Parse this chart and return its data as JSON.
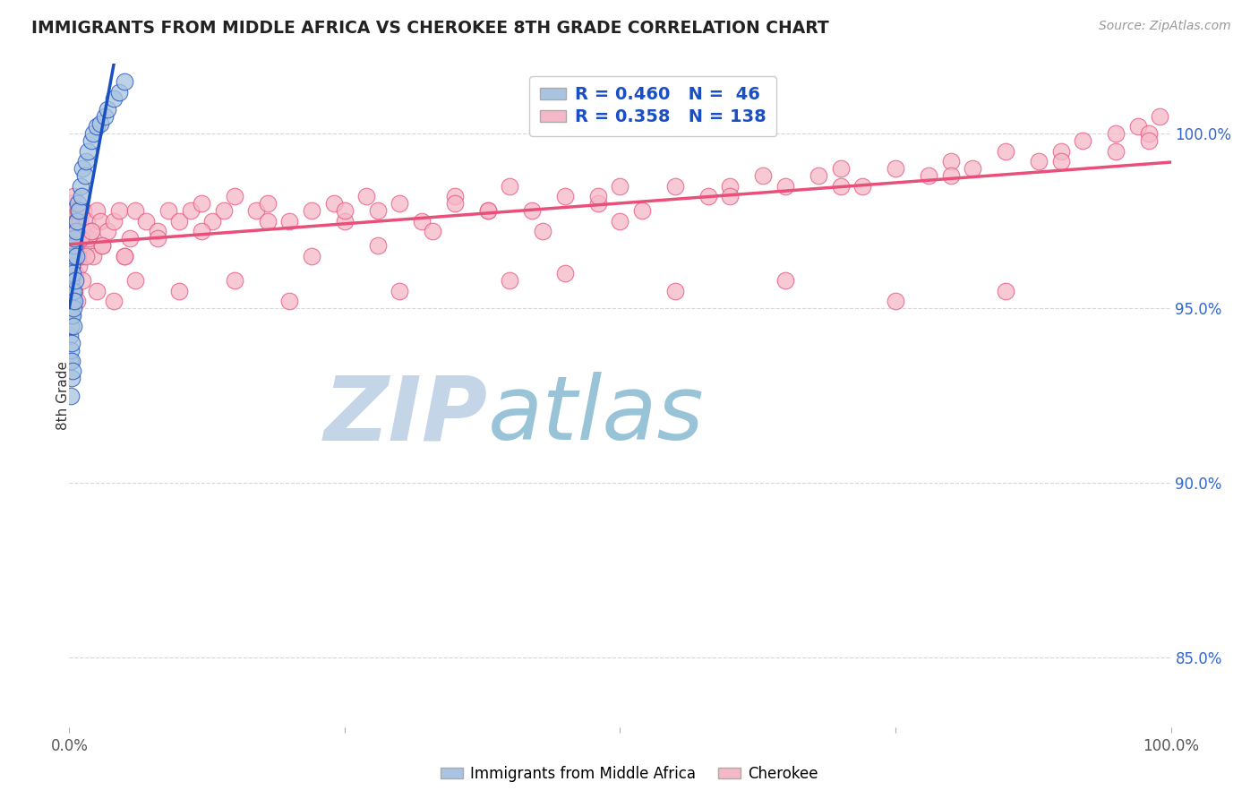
{
  "title": "IMMIGRANTS FROM MIDDLE AFRICA VS CHEROKEE 8TH GRADE CORRELATION CHART",
  "source_text": "Source: ZipAtlas.com",
  "ylabel": "8th Grade",
  "right_yticks": [
    85.0,
    90.0,
    95.0,
    100.0
  ],
  "blue_R": 0.46,
  "blue_N": 46,
  "pink_R": 0.358,
  "pink_N": 138,
  "blue_color": "#A8C4E0",
  "pink_color": "#F5B8C8",
  "blue_line_color": "#1A4FC4",
  "pink_line_color": "#E8507A",
  "legend_R_color": "#1A4FC4",
  "background_color": "#FFFFFF",
  "xlim": [
    0.0,
    100.0
  ],
  "ylim": [
    83.0,
    102.0
  ],
  "blue_scatter_x": [
    0.05,
    0.05,
    0.08,
    0.1,
    0.1,
    0.12,
    0.15,
    0.15,
    0.18,
    0.2,
    0.2,
    0.22,
    0.25,
    0.25,
    0.28,
    0.3,
    0.3,
    0.32,
    0.35,
    0.35,
    0.4,
    0.42,
    0.45,
    0.5,
    0.5,
    0.55,
    0.6,
    0.65,
    0.7,
    0.8,
    0.9,
    1.0,
    1.1,
    1.2,
    1.4,
    1.5,
    1.7,
    2.0,
    2.2,
    2.5,
    2.8,
    3.2,
    3.5,
    4.0,
    4.5,
    5.0
  ],
  "blue_scatter_y": [
    93.5,
    94.2,
    95.0,
    92.5,
    96.5,
    93.8,
    94.5,
    95.8,
    93.0,
    94.8,
    95.5,
    96.2,
    93.5,
    94.0,
    95.2,
    94.8,
    96.0,
    93.2,
    95.5,
    96.5,
    94.5,
    95.0,
    96.8,
    95.2,
    97.0,
    95.8,
    96.5,
    97.2,
    97.5,
    98.0,
    97.8,
    98.5,
    98.2,
    99.0,
    98.8,
    99.2,
    99.5,
    99.8,
    100.0,
    100.2,
    100.3,
    100.5,
    100.7,
    101.0,
    101.2,
    101.5
  ],
  "pink_scatter_x": [
    0.05,
    0.08,
    0.1,
    0.12,
    0.15,
    0.15,
    0.18,
    0.2,
    0.22,
    0.25,
    0.28,
    0.3,
    0.32,
    0.35,
    0.38,
    0.4,
    0.42,
    0.45,
    0.48,
    0.5,
    0.55,
    0.6,
    0.65,
    0.7,
    0.75,
    0.8,
    0.85,
    0.9,
    0.95,
    1.0,
    1.1,
    1.2,
    1.3,
    1.5,
    1.6,
    1.8,
    2.0,
    2.2,
    2.5,
    2.8,
    3.0,
    3.5,
    4.0,
    4.5,
    5.0,
    5.5,
    6.0,
    7.0,
    8.0,
    9.0,
    10.0,
    11.0,
    12.0,
    13.0,
    14.0,
    15.0,
    17.0,
    18.0,
    20.0,
    22.0,
    24.0,
    25.0,
    27.0,
    28.0,
    30.0,
    32.0,
    35.0,
    38.0,
    40.0,
    42.0,
    45.0,
    48.0,
    50.0,
    52.0,
    55.0,
    58.0,
    60.0,
    63.0,
    65.0,
    68.0,
    70.0,
    72.0,
    75.0,
    78.0,
    80.0,
    82.0,
    85.0,
    88.0,
    90.0,
    92.0,
    95.0,
    97.0,
    98.0,
    99.0,
    0.2,
    0.3,
    0.4,
    0.5,
    0.6,
    0.7,
    0.8,
    1.0,
    1.2,
    1.5,
    2.0,
    2.5,
    3.0,
    4.0,
    5.0,
    6.0,
    8.0,
    10.0,
    12.0,
    15.0,
    18.0,
    20.0,
    25.0,
    30.0,
    35.0,
    40.0,
    45.0,
    50.0,
    55.0,
    60.0,
    65.0,
    70.0,
    75.0,
    80.0,
    85.0,
    90.0,
    95.0,
    98.0,
    22.0,
    28.0,
    33.0,
    38.0,
    43.0,
    48.0
  ],
  "pink_scatter_y": [
    96.8,
    97.2,
    96.5,
    97.5,
    97.0,
    98.0,
    96.2,
    97.8,
    96.0,
    97.3,
    97.6,
    96.5,
    97.0,
    98.2,
    96.8,
    97.5,
    97.0,
    96.5,
    97.8,
    97.2,
    96.0,
    97.5,
    96.8,
    97.2,
    97.8,
    96.5,
    97.0,
    96.2,
    97.5,
    97.8,
    96.5,
    97.2,
    97.8,
    96.8,
    97.5,
    97.0,
    97.2,
    96.5,
    97.8,
    97.5,
    96.8,
    97.2,
    97.5,
    97.8,
    96.5,
    97.0,
    97.8,
    97.5,
    97.2,
    97.8,
    97.5,
    97.8,
    98.0,
    97.5,
    97.8,
    98.2,
    97.8,
    98.0,
    97.5,
    97.8,
    98.0,
    97.5,
    98.2,
    97.8,
    98.0,
    97.5,
    98.2,
    97.8,
    98.5,
    97.8,
    98.2,
    98.0,
    98.5,
    97.8,
    98.5,
    98.2,
    98.5,
    98.8,
    98.5,
    98.8,
    99.0,
    98.5,
    99.0,
    98.8,
    99.2,
    99.0,
    99.5,
    99.2,
    99.5,
    99.8,
    100.0,
    100.2,
    100.0,
    100.5,
    96.2,
    95.8,
    97.0,
    95.5,
    96.8,
    95.2,
    96.5,
    97.0,
    95.8,
    96.5,
    97.2,
    95.5,
    96.8,
    95.2,
    96.5,
    95.8,
    97.0,
    95.5,
    97.2,
    95.8,
    97.5,
    95.2,
    97.8,
    95.5,
    98.0,
    95.8,
    96.0,
    97.5,
    95.5,
    98.2,
    95.8,
    98.5,
    95.2,
    98.8,
    95.5,
    99.2,
    99.5,
    99.8,
    96.5,
    96.8,
    97.2,
    97.8,
    97.2,
    98.2
  ],
  "watermark_ZIP_color": "#C5D5E8",
  "watermark_atlas_color": "#99C4D8"
}
